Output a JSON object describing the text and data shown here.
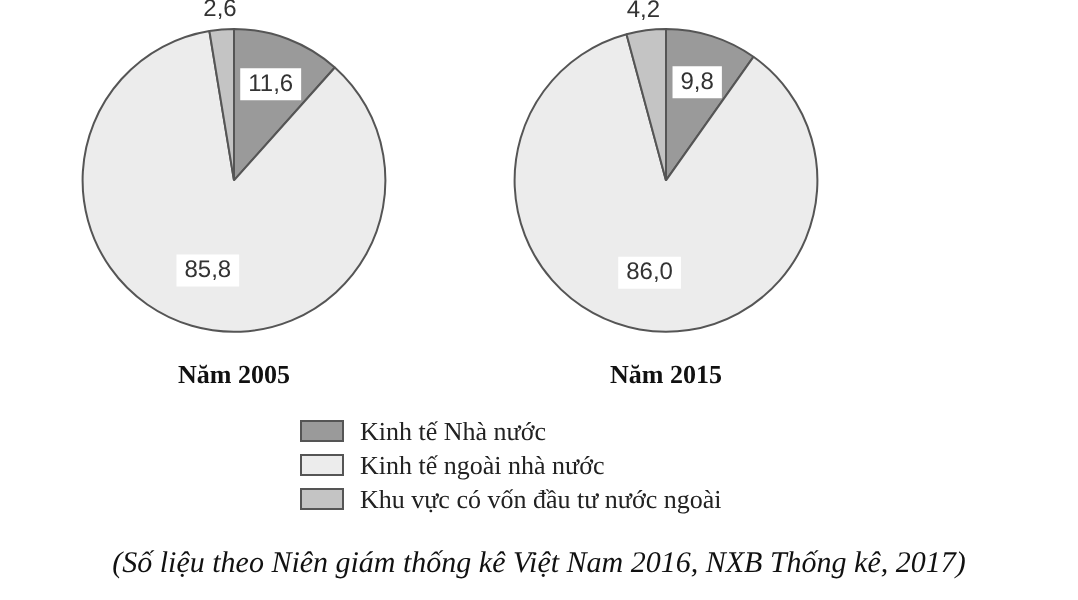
{
  "chart_data": {
    "type": "pie",
    "categories": [
      "Kinh tế Nhà nước",
      "Kinh tế ngoài nhà nước",
      "Khu vực có vốn đầu tư nước ngoài"
    ],
    "colors": [
      "#9a9a9a",
      "#ececec",
      "#c4c4c4"
    ],
    "legend": "bottom",
    "series": [
      {
        "name": "Năm 2005",
        "values": [
          11.6,
          85.8,
          2.6
        ],
        "value_labels": [
          "11,6",
          "85,8",
          "2,6"
        ]
      },
      {
        "name": "Năm 2015",
        "values": [
          9.8,
          86.0,
          4.2
        ],
        "value_labels": [
          "9,8",
          "86,0",
          "4,2"
        ]
      }
    ],
    "annotations": [
      "(Số liệu theo Niên giám thống kê Việt Nam 2016, NXB Thống kê, 2017)"
    ]
  }
}
